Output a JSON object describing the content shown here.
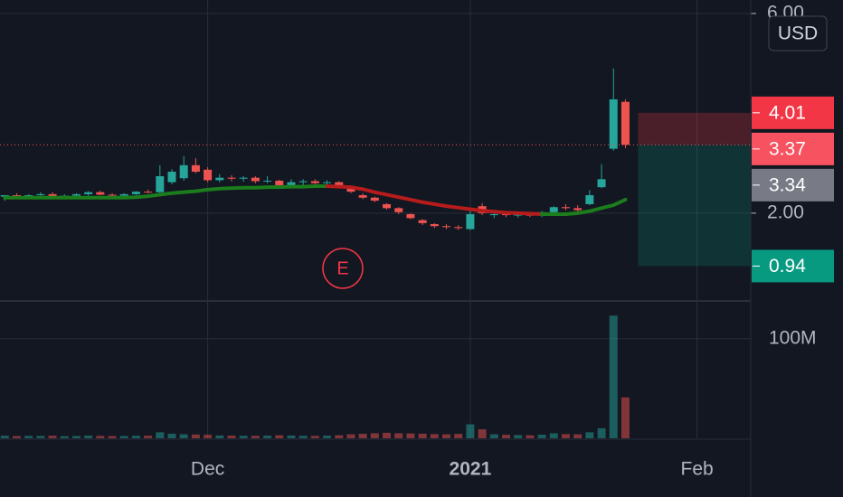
{
  "chart_data": {
    "type": "candlestick",
    "currency_button": "USD",
    "event_marker": "E",
    "x": [
      0,
      1,
      2,
      3,
      4,
      5,
      6,
      7,
      8,
      9,
      10,
      11,
      12,
      13,
      14,
      15,
      16,
      17,
      18,
      19,
      20,
      21,
      22,
      23,
      24,
      25,
      26,
      27,
      28,
      29,
      30,
      31,
      32,
      33,
      34,
      35,
      36,
      37,
      38,
      39,
      40,
      41,
      42,
      43,
      44,
      45,
      46,
      47,
      48,
      49,
      50,
      51,
      52
    ],
    "xlim": [
      -0.4,
      62.5
    ],
    "xticks": [
      {
        "value": 17,
        "label": "Dec"
      },
      {
        "value": 39,
        "label": "2021"
      },
      {
        "value": 58,
        "label": "Feb"
      }
    ],
    "ylim": [
      0.26,
      6.27
    ],
    "yticks": [
      {
        "value": 2,
        "label": "2.00"
      },
      {
        "value": 6,
        "label": "6.00"
      }
    ],
    "ohlc": [
      [
        2.33,
        2.36,
        2.25,
        2.36
      ],
      [
        2.36,
        2.4,
        2.3,
        2.33
      ],
      [
        2.33,
        2.38,
        2.29,
        2.36
      ],
      [
        2.36,
        2.42,
        2.33,
        2.38
      ],
      [
        2.38,
        2.42,
        2.33,
        2.34
      ],
      [
        2.34,
        2.38,
        2.31,
        2.35
      ],
      [
        2.35,
        2.4,
        2.32,
        2.38
      ],
      [
        2.38,
        2.44,
        2.35,
        2.42
      ],
      [
        2.42,
        2.45,
        2.36,
        2.37
      ],
      [
        2.37,
        2.4,
        2.33,
        2.35
      ],
      [
        2.35,
        2.4,
        2.32,
        2.38
      ],
      [
        2.38,
        2.44,
        2.36,
        2.43
      ],
      [
        2.43,
        2.47,
        2.4,
        2.42
      ],
      [
        2.42,
        2.96,
        2.4,
        2.74
      ],
      [
        2.62,
        2.88,
        2.58,
        2.83
      ],
      [
        2.7,
        3.14,
        2.65,
        2.96
      ],
      [
        2.96,
        3.1,
        2.8,
        2.83
      ],
      [
        2.87,
        2.92,
        2.62,
        2.66
      ],
      [
        2.66,
        2.78,
        2.62,
        2.71
      ],
      [
        2.71,
        2.76,
        2.64,
        2.69
      ],
      [
        2.69,
        2.74,
        2.63,
        2.71
      ],
      [
        2.71,
        2.74,
        2.6,
        2.64
      ],
      [
        2.64,
        2.74,
        2.6,
        2.65
      ],
      [
        2.65,
        2.67,
        2.52,
        2.56
      ],
      [
        2.56,
        2.68,
        2.52,
        2.62
      ],
      [
        2.62,
        2.68,
        2.56,
        2.64
      ],
      [
        2.64,
        2.68,
        2.58,
        2.6
      ],
      [
        2.6,
        2.66,
        2.55,
        2.62
      ],
      [
        2.62,
        2.64,
        2.5,
        2.52
      ],
      [
        2.52,
        2.52,
        2.4,
        2.43
      ],
      [
        2.36,
        2.4,
        2.28,
        2.31
      ],
      [
        2.31,
        2.33,
        2.22,
        2.25
      ],
      [
        2.18,
        2.2,
        2.07,
        2.1
      ],
      [
        2.1,
        2.12,
        1.98,
        2.02
      ],
      [
        1.98,
        2.0,
        1.88,
        1.9
      ],
      [
        1.86,
        1.88,
        1.76,
        1.8
      ],
      [
        1.78,
        1.8,
        1.7,
        1.74
      ],
      [
        1.74,
        1.78,
        1.68,
        1.72
      ],
      [
        1.72,
        1.76,
        1.66,
        1.7
      ],
      [
        1.68,
        2.06,
        1.66,
        1.98
      ],
      [
        2.14,
        2.2,
        1.96,
        2.0
      ],
      [
        1.96,
        2.02,
        1.9,
        1.98
      ],
      [
        1.98,
        2.02,
        1.92,
        1.96
      ],
      [
        1.96,
        2.0,
        1.91,
        1.97
      ],
      [
        1.97,
        2.02,
        1.92,
        1.95
      ],
      [
        1.95,
        2.04,
        1.92,
        2.02
      ],
      [
        2.02,
        2.14,
        2.0,
        2.12
      ],
      [
        2.12,
        2.18,
        2.06,
        2.1
      ],
      [
        2.1,
        2.16,
        2.02,
        2.06
      ],
      [
        2.18,
        2.46,
        2.16,
        2.36
      ],
      [
        2.52,
        2.98,
        2.5,
        2.68
      ],
      [
        3.29,
        4.9,
        3.25,
        4.28
      ],
      [
        4.23,
        4.28,
        3.3,
        3.37
      ]
    ],
    "up_color": "#26a69a",
    "down_color": "#ef5350",
    "moving_average": [
      2.31,
      2.31,
      2.31,
      2.31,
      2.31,
      2.31,
      2.31,
      2.31,
      2.31,
      2.31,
      2.31,
      2.32,
      2.34,
      2.37,
      2.4,
      2.42,
      2.44,
      2.47,
      2.49,
      2.5,
      2.51,
      2.51,
      2.52,
      2.52,
      2.53,
      2.53,
      2.54,
      2.54,
      2.53,
      2.52,
      2.48,
      2.42,
      2.37,
      2.32,
      2.27,
      2.22,
      2.18,
      2.14,
      2.11,
      2.08,
      2.05,
      2.03,
      2.01,
      2.0,
      1.99,
      1.98,
      1.98,
      1.98,
      2.0,
      2.04,
      2.1,
      2.16,
      2.27
    ],
    "ma_rising_color": "#1b7d1b",
    "ma_falling_color": "#b71c1c",
    "volume": [
      2500000,
      2200000,
      2400000,
      2300000,
      2600000,
      2100000,
      2300000,
      2700000,
      2400000,
      2200000,
      2300000,
      2500000,
      2600000,
      6000000,
      4500000,
      4000000,
      3800000,
      3500000,
      2800000,
      2600000,
      2500000,
      2400000,
      2600000,
      3000000,
      2700000,
      2500000,
      2400000,
      2600000,
      3000000,
      4000000,
      4500000,
      5000000,
      5500000,
      5000000,
      4800000,
      4600000,
      4200000,
      4000000,
      4400000,
      14000000,
      9000000,
      4000000,
      3500000,
      3200000,
      3000000,
      3600000,
      5000000,
      4200000,
      4000000,
      6000000,
      10000000,
      123000000,
      41000000
    ],
    "volume_ylim": [
      0,
      136000000
    ],
    "volume_ticks": [
      {
        "value": 100000000,
        "label": "100M"
      }
    ],
    "position": {
      "stop": 4.01,
      "entry": 3.37,
      "target": 0.94
    },
    "indicator_level": 3.34
  }
}
